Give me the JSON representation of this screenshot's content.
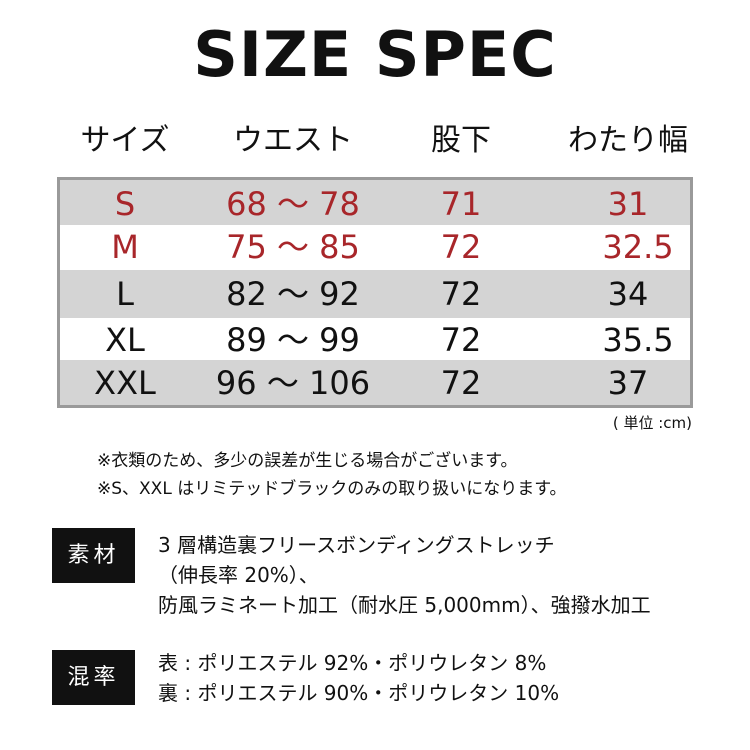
{
  "title": "SIZE SPEC",
  "headers": [
    "サイズ",
    "ウエスト",
    "股下",
    "わたり幅"
  ],
  "rows": [
    {
      "size": "S",
      "waist": "68 ～ 78",
      "inseam": "71",
      "thigh": "31",
      "highlight": true
    },
    {
      "size": "M",
      "waist": "75 ～ 85",
      "inseam": "72",
      "thigh": "32.5",
      "highlight": true
    },
    {
      "size": "L",
      "waist": "82 ～ 92",
      "inseam": "72",
      "thigh": "34",
      "highlight": false
    },
    {
      "size": "XL",
      "waist": "89 ～ 99",
      "inseam": "72",
      "thigh": "35.5",
      "highlight": false
    },
    {
      "size": "XXL",
      "waist": "96 ～ 106",
      "inseam": "72",
      "thigh": "37",
      "highlight": false
    }
  ],
  "unit": "( 単位 :cm)",
  "notes": [
    "※衣類のため、多少の誤差が生じる場合がございます。",
    "※S、XXL はリミテッドブラックのみの取り扱いになります。"
  ],
  "material": {
    "label": "素材",
    "lines": [
      "3 層構造裏フリースボンディングストレッチ",
      "（伸長率 20%）、",
      "防風ラミネート加工（耐水圧 5,000mm）、強撥水加工"
    ]
  },
  "blend": {
    "label": "混率",
    "lines": [
      "表 : ポリエステル 92%・ポリウレタン 8%",
      "裏 : ポリエステル 90%・ポリウレタン 10%"
    ]
  },
  "colors": {
    "highlight_text": "#a8262a",
    "row_gray": "#d4d4d4",
    "border": "#9a9a9a"
  }
}
